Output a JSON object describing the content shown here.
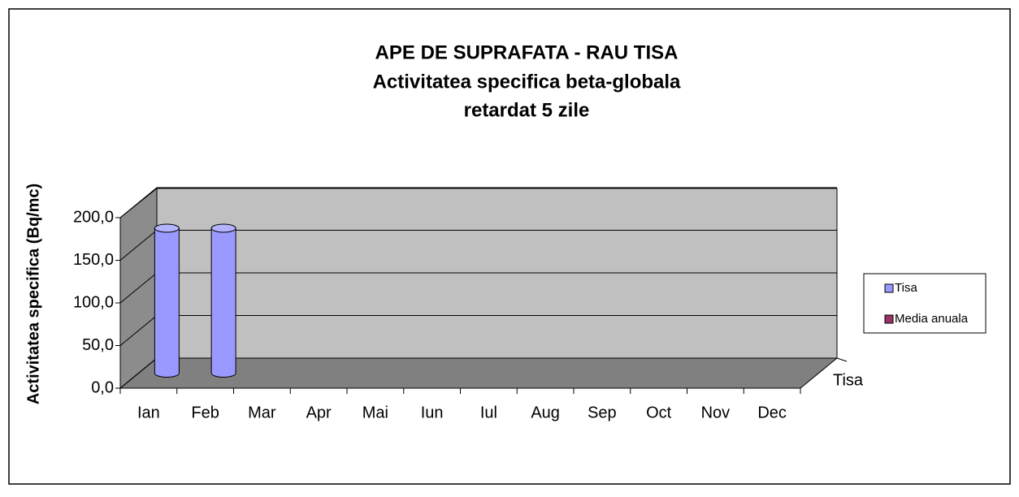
{
  "chart_data": {
    "type": "bar3d",
    "title": [
      "APE DE SUPRAFATA - RAU TISA",
      "Activitatea specifica beta-globala",
      "retardat 5 zile"
    ],
    "y_label": "Activitatea specifica (Bq/mc)",
    "categories": [
      "Ian",
      "Feb",
      "Mar",
      "Apr",
      "Mai",
      "Iun",
      "Iul",
      "Aug",
      "Sep",
      "Oct",
      "Nov",
      "Dec"
    ],
    "series": [
      {
        "name": "Tisa",
        "color": "#9999ff",
        "values": [
          170,
          170,
          null,
          null,
          null,
          null,
          null,
          null,
          null,
          null,
          null,
          null
        ]
      },
      {
        "name": "Media anuala",
        "color": "#993366",
        "values": [
          null,
          null,
          null,
          null,
          null,
          null,
          null,
          null,
          null,
          null,
          null,
          null
        ]
      }
    ],
    "ylim": [
      0,
      200
    ],
    "yticks": [
      {
        "value": 0,
        "label": "0,0"
      },
      {
        "value": 50,
        "label": "50,0"
      },
      {
        "value": 100,
        "label": "100,0"
      },
      {
        "value": 150,
        "label": "150,0"
      },
      {
        "value": 200,
        "label": "200,0"
      }
    ],
    "grid": true
  }
}
